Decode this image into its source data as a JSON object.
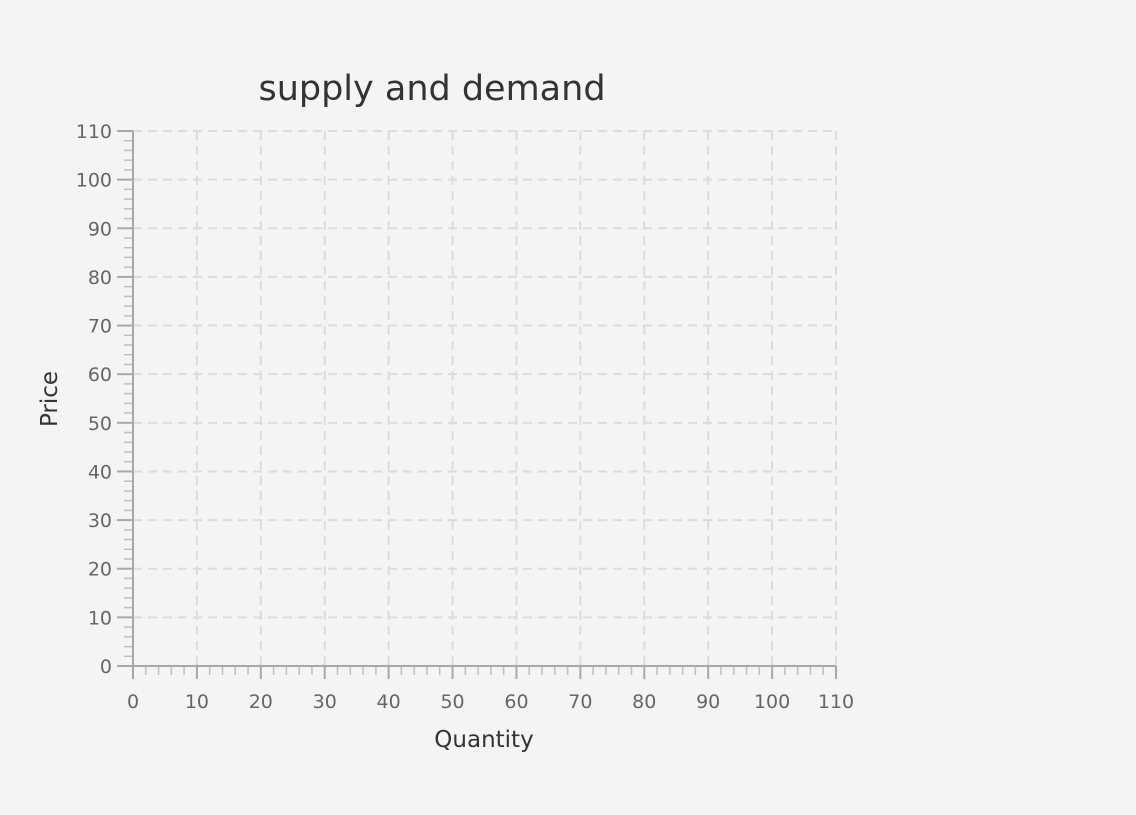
{
  "chart_data": {
    "type": "line",
    "title": "supply and demand",
    "xlabel": "Quantity",
    "ylabel": "Price",
    "xlim": [
      0,
      110
    ],
    "ylim": [
      0,
      110
    ],
    "x_ticks": [
      0,
      10,
      20,
      30,
      40,
      50,
      60,
      70,
      80,
      90,
      100,
      110
    ],
    "y_ticks": [
      0,
      10,
      20,
      30,
      40,
      50,
      60,
      70,
      80,
      90,
      100,
      110
    ],
    "minor_ticks_per_major": 5,
    "grid": true,
    "series": []
  },
  "colors": {
    "background": "#f4f4f4",
    "grid": "#dcdcdc",
    "axis": "#a8a8a8",
    "text": "#333333",
    "tick_text": "#666666"
  }
}
